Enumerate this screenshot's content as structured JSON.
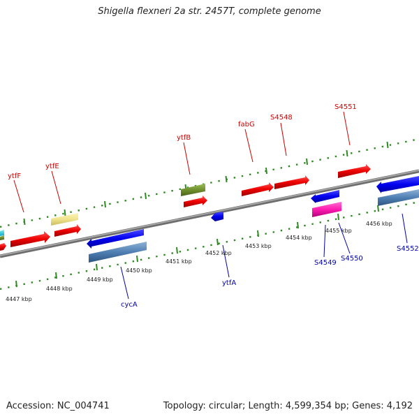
{
  "title": "Shigella flexneri 2a str. 2457T, complete genome",
  "accession": "Accession: NC_004741",
  "topology": "Topology: circular; Length: 4,599,354 bp; Genes: 4,192",
  "colors": {
    "forward_label": "#cc0000",
    "reverse_label": "#0000aa",
    "backbone": "#888888",
    "ruler_dots": "#2e8b22"
  },
  "kbp_labels": [
    "4447 kbp",
    "4448 kbp",
    "4449 kbp",
    "4450 kbp",
    "4451 kbp",
    "4452 kbp",
    "4453 kbp",
    "4454 kbp",
    "4455 kbp",
    "4456 kbp"
  ],
  "gene_labels": {
    "ytfF": "ytfF",
    "ytfE": "ytfE",
    "ytfB": "ytfB",
    "fabG": "fabG",
    "S4548": "S4548",
    "S4551": "S4551",
    "cycA": "cycA",
    "ytfA": "ytfA",
    "S4549": "S4549",
    "S4550": "S4550",
    "S4552": "S4552"
  }
}
